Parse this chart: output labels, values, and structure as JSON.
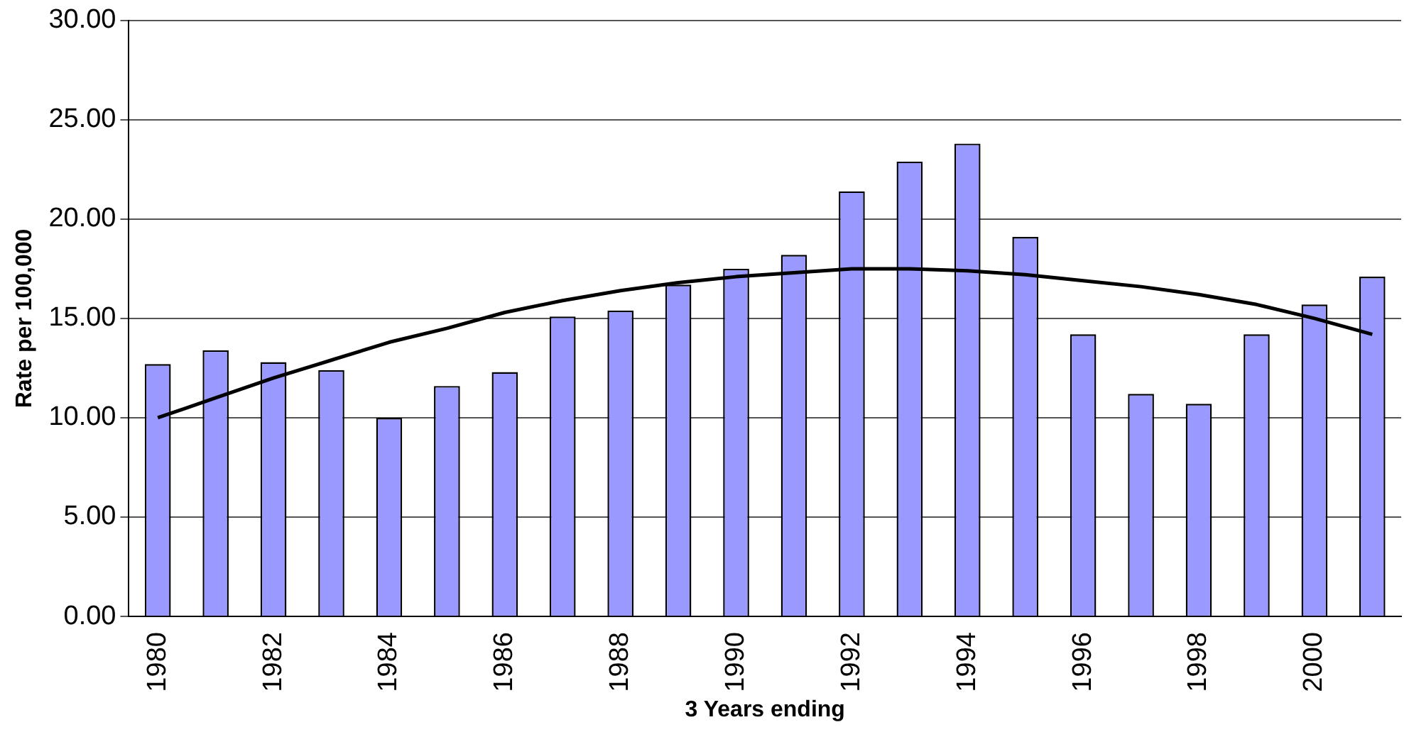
{
  "chart_data": {
    "type": "bar",
    "xlabel": "3 Years ending",
    "ylabel": "Rate per 100,000",
    "categories": [
      "1980",
      null,
      "1982",
      null,
      "1984",
      null,
      "1986",
      null,
      "1988",
      null,
      "1990",
      null,
      "1992",
      null,
      "1994",
      null,
      "1996",
      null,
      "1998",
      null,
      "2000",
      null
    ],
    "series": [
      {
        "color": "#9999ff",
        "values": [
          12.7,
          13.4,
          12.8,
          12.4,
          10.0,
          11.6,
          12.3,
          15.1,
          15.4,
          16.7,
          17.5,
          18.2,
          21.4,
          22.9,
          23.8,
          19.1,
          14.2,
          11.2,
          10.7,
          14.2,
          15.7,
          17.1
        ]
      },
      {
        "type": "line",
        "color": "#000000",
        "marker": "none",
        "values": [
          10.0,
          11.0,
          12.0,
          12.9,
          13.8,
          14.5,
          15.3,
          15.9,
          16.4,
          16.8,
          17.1,
          17.3,
          17.5,
          17.5,
          17.4,
          17.2,
          16.9,
          16.6,
          16.2,
          15.7,
          15.0,
          14.2
        ]
      }
    ],
    "ylim": [
      0,
      30
    ],
    "yticks": [
      {
        "value": 0,
        "label": "0.00"
      },
      {
        "value": 5,
        "label": "5.00"
      },
      {
        "value": 10,
        "label": "10.00"
      },
      {
        "value": 15,
        "label": "15.00"
      },
      {
        "value": 20,
        "label": "20.00"
      },
      {
        "value": 25,
        "label": "25.00"
      },
      {
        "value": 30,
        "label": "30.00"
      }
    ],
    "grid": "y",
    "legend": false
  }
}
